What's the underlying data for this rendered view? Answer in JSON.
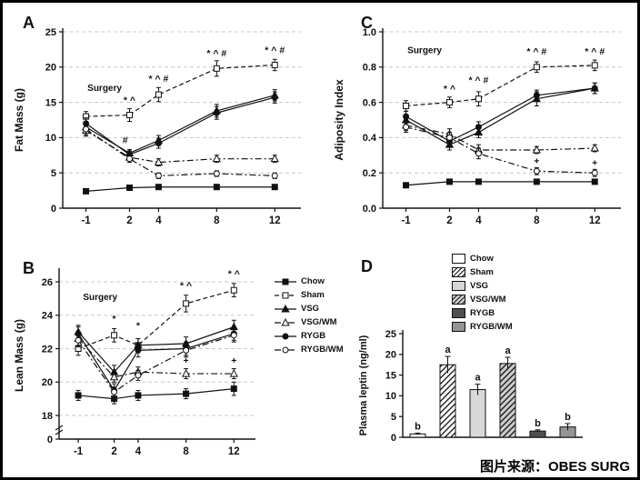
{
  "caption": "图片来源：OBES SURG",
  "panels": {
    "a": {
      "label": "A"
    },
    "b": {
      "label": "B"
    },
    "c": {
      "label": "C"
    },
    "d": {
      "label": "D"
    }
  },
  "legend": {
    "items": [
      {
        "label": "Chow",
        "marker": "square-filled",
        "line": "solid"
      },
      {
        "label": "Sham",
        "marker": "square-open",
        "line": "dashed"
      },
      {
        "label": "VSG",
        "marker": "triangle-filled",
        "line": "solid"
      },
      {
        "label": "VSG/WM",
        "marker": "triangle-open",
        "line": "dashdot"
      },
      {
        "label": "RYGB",
        "marker": "circle-filled",
        "line": "solid"
      },
      {
        "label": "RYGB/WM",
        "marker": "circle-open",
        "line": "dashdot"
      }
    ]
  },
  "chart_data": [
    {
      "id": "A",
      "type": "line",
      "title": "",
      "xlabel": "",
      "ylabel": "Fat Mass (g)",
      "x": [
        -1,
        2,
        4,
        8,
        12
      ],
      "ylim": [
        0,
        25
      ],
      "yticks": [
        0,
        5,
        10,
        15,
        20,
        25
      ],
      "grid": true,
      "series": [
        {
          "name": "Chow",
          "marker": "square-filled",
          "line": "solid",
          "values": [
            2.4,
            2.9,
            3.0,
            3.0,
            3.0
          ],
          "errors": [
            0.3,
            0.3,
            0.3,
            0.3,
            0.3
          ]
        },
        {
          "name": "Sham",
          "marker": "square-open",
          "line": "dashed",
          "values": [
            13.0,
            13.2,
            16.1,
            19.8,
            20.3
          ],
          "errors": [
            0.7,
            0.9,
            1.0,
            1.1,
            0.8
          ]
        },
        {
          "name": "VSG",
          "marker": "triangle-filled",
          "line": "solid",
          "values": [
            11.5,
            7.8,
            9.6,
            13.8,
            16.0
          ],
          "errors": [
            0.8,
            0.5,
            0.7,
            0.9,
            0.8
          ]
        },
        {
          "name": "VSG/WM",
          "marker": "triangle-open",
          "line": "dashdot",
          "values": [
            11.0,
            7.2,
            6.5,
            7.0,
            7.0
          ],
          "errors": [
            0.8,
            0.5,
            0.5,
            0.5,
            0.5
          ]
        },
        {
          "name": "RYGB",
          "marker": "circle-filled",
          "line": "solid",
          "values": [
            12.0,
            7.6,
            9.2,
            13.5,
            15.7
          ],
          "errors": [
            0.8,
            0.5,
            0.7,
            0.9,
            0.8
          ]
        },
        {
          "name": "RYGB/WM",
          "marker": "circle-open",
          "line": "dashdot",
          "values": [
            11.2,
            7.0,
            4.6,
            4.9,
            4.6
          ],
          "errors": [
            0.8,
            0.5,
            0.4,
            0.4,
            0.4
          ]
        }
      ],
      "annotations": [
        {
          "x": -0.9,
          "y": 16.6,
          "text": "Surgery",
          "anchor": "start",
          "small": true
        },
        {
          "x": 2,
          "y": 14.9,
          "text": "* ^"
        },
        {
          "x": 4,
          "y": 17.9,
          "text": "* ^ #"
        },
        {
          "x": 8,
          "y": 21.5,
          "text": "* ^ #"
        },
        {
          "x": 12,
          "y": 22.0,
          "text": "* ^ #"
        },
        {
          "x": 1.7,
          "y": 9.2,
          "text": "#"
        }
      ]
    },
    {
      "id": "C",
      "type": "line",
      "title": "",
      "xlabel": "",
      "ylabel": "Adiposity Index",
      "x": [
        -1,
        2,
        4,
        8,
        12
      ],
      "ylim": [
        0,
        1
      ],
      "yticks": [
        0,
        0.2,
        0.4,
        0.6,
        0.8,
        1
      ],
      "ydecimals": 1,
      "grid": true,
      "series": [
        {
          "name": "Chow",
          "marker": "square-filled",
          "line": "solid",
          "values": [
            0.13,
            0.15,
            0.15,
            0.15,
            0.15
          ],
          "errors": [
            0.01,
            0.01,
            0.01,
            0.01,
            0.01
          ]
        },
        {
          "name": "Sham",
          "marker": "square-open",
          "line": "dashed",
          "values": [
            0.58,
            0.6,
            0.62,
            0.8,
            0.81
          ],
          "errors": [
            0.03,
            0.03,
            0.04,
            0.03,
            0.03
          ]
        },
        {
          "name": "VSG",
          "marker": "triangle-filled",
          "line": "solid",
          "values": [
            0.5,
            0.36,
            0.43,
            0.62,
            0.68
          ],
          "errors": [
            0.03,
            0.03,
            0.03,
            0.04,
            0.03
          ]
        },
        {
          "name": "VSG/WM",
          "marker": "triangle-open",
          "line": "dashdot",
          "values": [
            0.47,
            0.42,
            0.33,
            0.33,
            0.34
          ],
          "errors": [
            0.03,
            0.03,
            0.03,
            0.02,
            0.02
          ]
        },
        {
          "name": "RYGB",
          "marker": "circle-filled",
          "line": "solid",
          "values": [
            0.52,
            0.38,
            0.46,
            0.64,
            0.68
          ],
          "errors": [
            0.03,
            0.03,
            0.03,
            0.03,
            0.03
          ]
        },
        {
          "name": "RYGB/WM",
          "marker": "circle-open",
          "line": "dashdot",
          "values": [
            0.46,
            0.4,
            0.31,
            0.21,
            0.2
          ],
          "errors": [
            0.03,
            0.03,
            0.03,
            0.02,
            0.02
          ]
        }
      ],
      "annotations": [
        {
          "x": -0.9,
          "y": 0.88,
          "text": "Surgery",
          "anchor": "start",
          "small": true
        },
        {
          "x": 2,
          "y": 0.66,
          "text": "* ^"
        },
        {
          "x": 4,
          "y": 0.71,
          "text": "* ^ #"
        },
        {
          "x": 8,
          "y": 0.87,
          "text": "* ^ #"
        },
        {
          "x": 12,
          "y": 0.87,
          "text": "* ^ #"
        },
        {
          "x": 8,
          "y": 0.25,
          "text": "+"
        },
        {
          "x": 12,
          "y": 0.24,
          "text": "+"
        }
      ]
    },
    {
      "id": "B",
      "type": "line",
      "title": "",
      "xlabel": "",
      "ylabel": "Lean Mass (g)",
      "x": [
        -1,
        2,
        4,
        8,
        12
      ],
      "ylim": [
        18,
        26.6
      ],
      "yticks": [
        0,
        18,
        20,
        22,
        24,
        26
      ],
      "broken_axis": true,
      "grid": true,
      "series": [
        {
          "name": "Chow",
          "marker": "square-filled",
          "line": "solid",
          "values": [
            19.2,
            19.0,
            19.2,
            19.3,
            19.6
          ],
          "errors": [
            0.3,
            0.3,
            0.3,
            0.3,
            0.4
          ]
        },
        {
          "name": "Sham",
          "marker": "square-open",
          "line": "dashed",
          "values": [
            22.0,
            22.8,
            22.2,
            24.7,
            25.5
          ],
          "errors": [
            0.4,
            0.4,
            0.4,
            0.5,
            0.4
          ]
        },
        {
          "name": "VSG",
          "marker": "triangle-filled",
          "line": "solid",
          "values": [
            23.0,
            20.6,
            22.2,
            22.3,
            23.3
          ],
          "errors": [
            0.4,
            0.4,
            0.4,
            0.4,
            0.4
          ]
        },
        {
          "name": "VSG/WM",
          "marker": "triangle-open",
          "line": "dashdot",
          "values": [
            22.6,
            20.3,
            20.6,
            20.5,
            20.5
          ],
          "errors": [
            0.4,
            0.3,
            0.3,
            0.3,
            0.3
          ]
        },
        {
          "name": "RYGB",
          "marker": "circle-filled",
          "line": "solid",
          "values": [
            22.9,
            19.5,
            21.9,
            22.0,
            22.9
          ],
          "errors": [
            0.4,
            0.4,
            0.4,
            0.4,
            0.4
          ]
        },
        {
          "name": "RYGB/WM",
          "marker": "circle-open",
          "line": "dashdot",
          "values": [
            22.5,
            19.4,
            20.4,
            21.9,
            22.8
          ],
          "errors": [
            0.4,
            0.3,
            0.3,
            0.4,
            0.4
          ]
        }
      ],
      "annotations": [
        {
          "x": -0.6,
          "y": 24.9,
          "text": "Surgery",
          "anchor": "start",
          "small": true
        },
        {
          "x": 2,
          "y": 23.6,
          "text": "*"
        },
        {
          "x": 4,
          "y": 23.2,
          "text": "*"
        },
        {
          "x": 8,
          "y": 25.6,
          "text": "* ^"
        },
        {
          "x": 12,
          "y": 26.3,
          "text": "* ^"
        },
        {
          "x": 8,
          "y": 21.1,
          "text": "+"
        },
        {
          "x": 12,
          "y": 21.1,
          "text": "+"
        }
      ]
    },
    {
      "id": "D",
      "type": "bar",
      "title": "",
      "xlabel": "",
      "ylabel": "Plasma leptin (ng/ml)",
      "categories": [
        "Chow",
        "Sham",
        "VSG",
        "VSG/WM",
        "RYGB",
        "RYGB/WM"
      ],
      "values": [
        0.8,
        17.5,
        11.5,
        17.8,
        1.5,
        2.5
      ],
      "errors": [
        0.2,
        2.0,
        1.3,
        1.5,
        0.3,
        0.8
      ],
      "letters": [
        "b",
        "a",
        "a",
        "a",
        "b",
        "b"
      ],
      "fills": [
        "white",
        "hatch",
        "lightgray",
        "hatch-gray",
        "darkgray",
        "midgray"
      ],
      "ylim": [
        0,
        25
      ],
      "yticks": [
        0,
        5,
        10,
        15,
        20,
        25
      ],
      "legend_position": "top"
    }
  ],
  "colors": {
    "axis": "#111111",
    "grid": "#c9c9c9",
    "lightgray": "#d8d8d8",
    "darkgray": "#4f4f4f",
    "midgray": "#949494"
  }
}
